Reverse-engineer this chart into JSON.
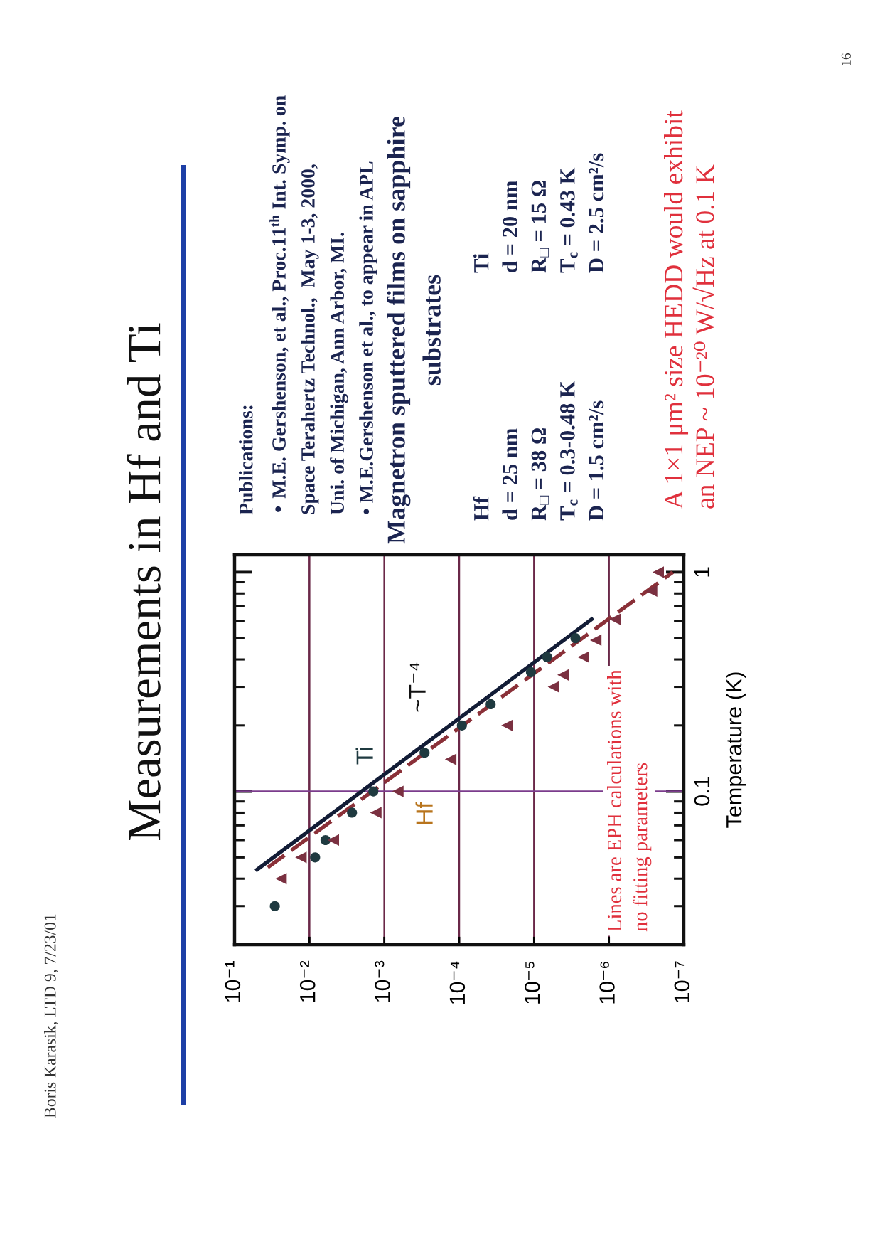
{
  "chart_data": {
    "type": "scatter",
    "title": "Measurements in Hf and Ti",
    "ylabel": "Temperature (K)",
    "log": "xy",
    "xlim": [
      0.1,
      1e-07
    ],
    "xticks": [
      {
        "value": 0.1,
        "label": "10⁻¹"
      },
      {
        "value": 0.01,
        "label": "10⁻²"
      },
      {
        "value": 0.001,
        "label": "10⁻³"
      },
      {
        "value": 0.0001,
        "label": "10⁻⁴"
      },
      {
        "value": 1e-05,
        "label": "10⁻⁵"
      },
      {
        "value": 1e-06,
        "label": "10⁻⁶"
      },
      {
        "value": 1e-07,
        "label": "10⁻⁷"
      }
    ],
    "ylim": [
      0.02,
      1.2
    ],
    "yticks": [
      0.1,
      1
    ],
    "grid": "x",
    "ref_lines": [
      {
        "axis": "y",
        "value": 0.1,
        "color": "#7b3c8c"
      }
    ],
    "series": [
      {
        "marker": "circle",
        "color": "#1f3a40",
        "x": [
          0.029,
          0.0084,
          0.0061,
          0.0027,
          0.0014,
          0.00029,
          9.2e-05,
          3.8e-05,
          1.1e-05,
          6.7e-06,
          2.8e-06
        ],
        "values": [
          0.03,
          0.05,
          0.06,
          0.08,
          0.1,
          0.15,
          0.2,
          0.25,
          0.35,
          0.41,
          0.5
        ]
      },
      {
        "marker": "triangle",
        "color": "#7a3040",
        "x": [
          0.024,
          0.013,
          0.0048,
          0.0013,
          0.00066,
          0.00013,
          2.3e-05,
          5.5e-06,
          4.1e-06,
          2.2e-06,
          1.5e-06,
          8.3e-07,
          2.7e-07,
          2.2e-07
        ],
        "values": [
          0.04,
          0.05,
          0.06,
          0.08,
          0.1,
          0.14,
          0.2,
          0.3,
          0.34,
          0.41,
          0.49,
          0.61,
          0.82,
          1.0
        ]
      },
      {
        "type": "line",
        "line_style": "solid",
        "color": "#121c36",
        "x": [
          0.05,
          1.7e-06
        ],
        "values": [
          0.044,
          0.61
        ]
      },
      {
        "type": "line",
        "line_style": "dashed",
        "color": "#8a3038",
        "x": [
          0.036,
          1.4e-07
        ],
        "values": [
          0.045,
          1.0
        ]
      }
    ],
    "annotations": [
      "Publications:\n• M.E. Gershenson, et al., Proc.11$^{th}$ Int. Symp. on\nSpace Terahertz Technol.,  May 1-3, 2000,\nUni. of Michigan, Ann Arbor, MI.\n• M.E.Gershenson et al., to appear in APL",
      "Magnetron sputtered films on sapphire\nsubstrates",
      "Hf\nd = 25 nm\nR$_{□}$ = 38 Ω\nT$_{c}$ = 0.3-0.48 K\nD = 1.5 cm²/s",
      "Ti\nd = 20 nm\nR$_{□}$ = 15 Ω\nT$_{c}$ = 0.43 K\nD = 2.5 cm²/s",
      "A 1×1 μm² size HEDD would exhibit\nan NEP ~ 10⁻²⁰ W/√Hz at 0.1 K",
      "Lines are EPH calculations with\nno fitting parameters",
      "Ti",
      "Hf",
      "~T⁻⁴",
      "Boris Karasik, LTD 9, 7/23/01",
      "16"
    ]
  }
}
